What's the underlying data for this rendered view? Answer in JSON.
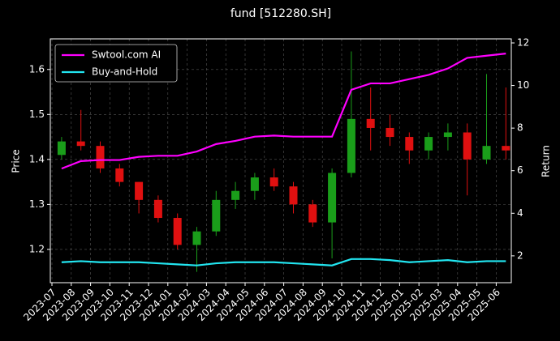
{
  "chart_data": {
    "type": "candlestick",
    "title": "fund [512280.SH]",
    "y_label": "Price",
    "y2_label": "Return",
    "categories": [
      "2023-07",
      "2023-08",
      "2023-09",
      "2023-10",
      "2023-11",
      "2023-12",
      "2024-01",
      "2024-02",
      "2024-03",
      "2024-04",
      "2024-05",
      "2024-06",
      "2024-07",
      "2024-08",
      "2024-09",
      "2024-10",
      "2024-11",
      "2024-12",
      "2025-01",
      "2025-02",
      "2025-03",
      "2025-04",
      "2025-05",
      "2025-06"
    ],
    "open": [
      1.41,
      1.44,
      1.43,
      1.38,
      1.35,
      1.31,
      1.27,
      1.21,
      1.24,
      1.31,
      1.33,
      1.36,
      1.34,
      1.3,
      1.26,
      1.37,
      1.49,
      1.47,
      1.45,
      1.42,
      1.45,
      1.46,
      1.4,
      1.43
    ],
    "high": [
      1.45,
      1.51,
      1.44,
      1.39,
      1.35,
      1.32,
      1.28,
      1.25,
      1.33,
      1.35,
      1.37,
      1.38,
      1.35,
      1.31,
      1.38,
      1.64,
      1.56,
      1.5,
      1.46,
      1.46,
      1.48,
      1.48,
      1.59,
      1.56
    ],
    "low": [
      1.4,
      1.42,
      1.37,
      1.34,
      1.28,
      1.26,
      1.2,
      1.15,
      1.23,
      1.29,
      1.31,
      1.33,
      1.28,
      1.25,
      1.18,
      1.36,
      1.42,
      1.43,
      1.39,
      1.4,
      1.42,
      1.32,
      1.39,
      1.4
    ],
    "close": [
      1.44,
      1.43,
      1.38,
      1.35,
      1.31,
      1.27,
      1.21,
      1.24,
      1.31,
      1.33,
      1.36,
      1.34,
      1.3,
      1.26,
      1.37,
      1.49,
      1.47,
      1.45,
      1.42,
      1.45,
      1.46,
      1.4,
      1.43,
      1.42
    ],
    "up_color": "#1a9e1a",
    "down_color": "#e01010",
    "series": [
      {
        "name": "Swtool.com AI",
        "color": "#ff00ff",
        "axis": "y2",
        "values": [
          6.1,
          6.45,
          6.5,
          6.5,
          6.65,
          6.7,
          6.7,
          6.9,
          7.25,
          7.4,
          7.6,
          7.65,
          7.6,
          7.6,
          7.6,
          9.8,
          10.1,
          10.1,
          10.3,
          10.5,
          10.8,
          11.3,
          11.4,
          11.5
        ]
      },
      {
        "name": "Buy-and-Hold",
        "color": "#22e5f0",
        "axis": "y2",
        "values": [
          1.7,
          1.75,
          1.7,
          1.7,
          1.7,
          1.65,
          1.6,
          1.55,
          1.65,
          1.7,
          1.7,
          1.7,
          1.65,
          1.6,
          1.55,
          1.85,
          1.85,
          1.8,
          1.7,
          1.75,
          1.8,
          1.7,
          1.75,
          1.75
        ]
      }
    ],
    "ylim": [
      1.126,
      1.668
    ],
    "yticks": [
      1.2,
      1.3,
      1.4,
      1.5,
      1.6
    ],
    "y2lim": [
      0.74,
      12.19
    ],
    "y2ticks": [
      2,
      4,
      6,
      8,
      10,
      12
    ],
    "grid": true,
    "legend": "upper left"
  }
}
